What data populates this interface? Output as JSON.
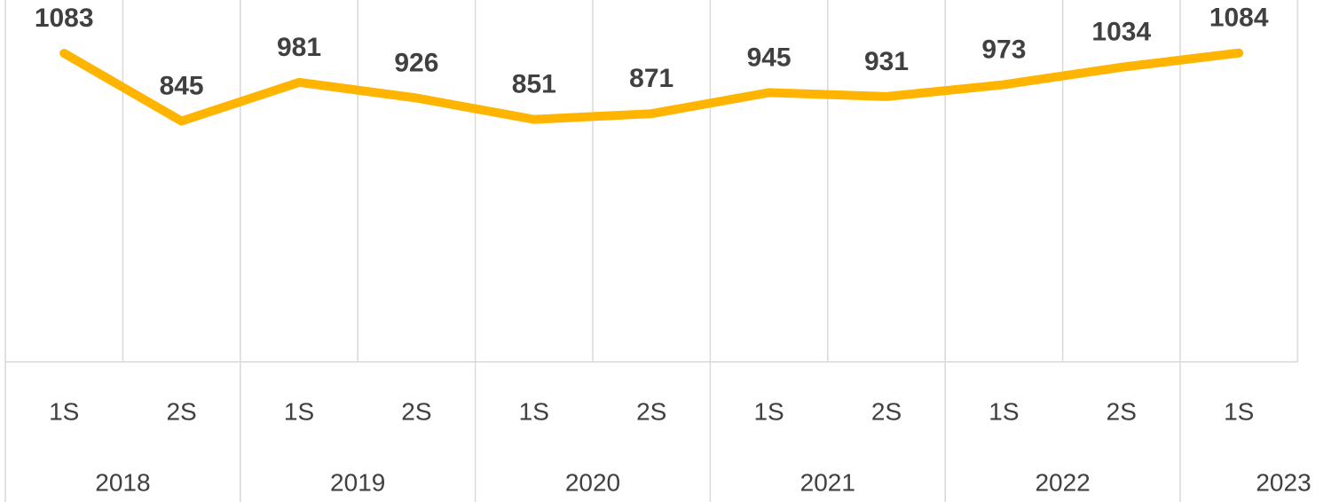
{
  "chart_data": {
    "type": "line",
    "groups": [
      {
        "name": "2018",
        "categories": [
          "1S",
          "2S"
        ]
      },
      {
        "name": "2019",
        "categories": [
          "1S",
          "2S"
        ]
      },
      {
        "name": "2020",
        "categories": [
          "1S",
          "2S"
        ]
      },
      {
        "name": "2021",
        "categories": [
          "1S",
          "2S"
        ]
      },
      {
        "name": "2022",
        "categories": [
          "1S",
          "2S"
        ]
      },
      {
        "name": "2023",
        "categories": [
          "1S"
        ]
      }
    ],
    "values": [
      1083,
      845,
      981,
      926,
      851,
      871,
      945,
      931,
      973,
      1034,
      1084
    ],
    "color": "#ffb400",
    "ylim": [
      0,
      1270
    ]
  }
}
